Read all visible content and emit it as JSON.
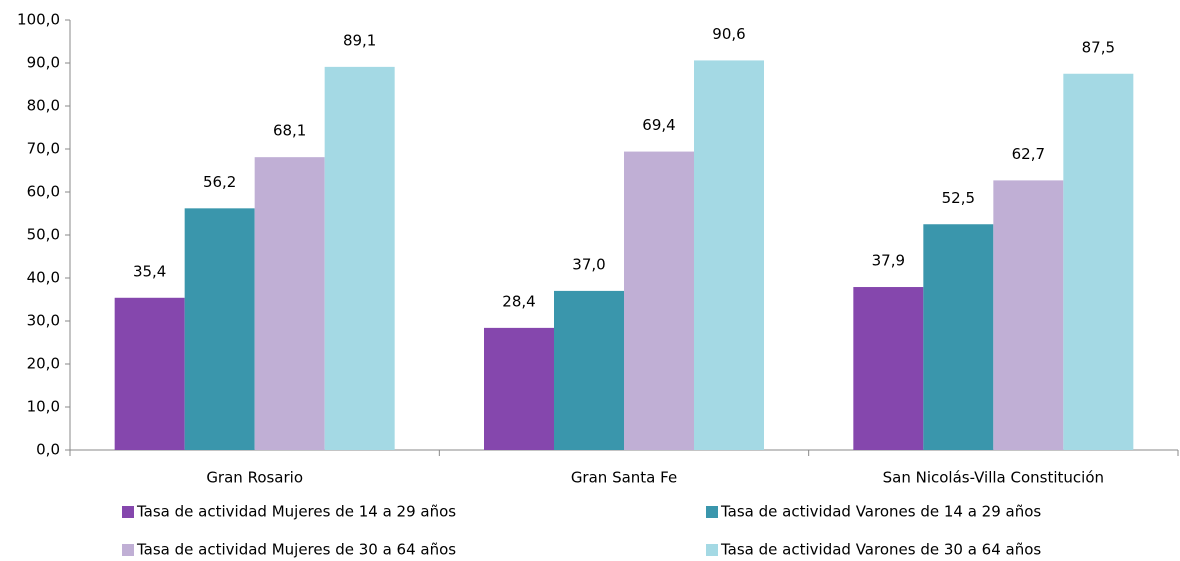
{
  "chart_data": {
    "type": "bar",
    "categories": [
      "Gran Rosario",
      "Gran Santa Fe",
      "San Nicolás-Villa Constitución"
    ],
    "series": [
      {
        "name": "Tasa de actividad Mujeres de 14 a 29 años",
        "color": "#8547ad",
        "values": [
          35.4,
          28.4,
          37.9
        ],
        "value_labels": [
          "35,4",
          "28,4",
          "37,9"
        ]
      },
      {
        "name": "Tasa de actividad Varones de 14 a 29 años",
        "color": "#3a96ac",
        "values": [
          56.2,
          37.0,
          52.5
        ],
        "value_labels": [
          "56,2",
          "37,0",
          "52,5"
        ]
      },
      {
        "name": "Tasa de actividad Mujeres de 30 a 64 años",
        "color": "#c0afd5",
        "values": [
          68.1,
          69.4,
          62.7
        ],
        "value_labels": [
          "68,1",
          "69,4",
          "62,7"
        ]
      },
      {
        "name": "Tasa de actividad Varones de 30 a 64 años",
        "color": "#a4d9e4",
        "values": [
          89.1,
          90.6,
          87.5
        ],
        "value_labels": [
          "89,1",
          "90,6",
          "87,5"
        ]
      }
    ],
    "ylim": [
      0,
      100
    ],
    "yticks": [
      {
        "value": 0,
        "label": "0,0"
      },
      {
        "value": 10,
        "label": "10,0"
      },
      {
        "value": 20,
        "label": "20,0"
      },
      {
        "value": 30,
        "label": "30,0"
      },
      {
        "value": 40,
        "label": "40,0"
      },
      {
        "value": 50,
        "label": "50,0"
      },
      {
        "value": 60,
        "label": "60,0"
      },
      {
        "value": 70,
        "label": "70,0"
      },
      {
        "value": 80,
        "label": "80,0"
      },
      {
        "value": 90,
        "label": "90,0"
      },
      {
        "value": 100,
        "label": "100,0"
      }
    ],
    "grid": false
  }
}
